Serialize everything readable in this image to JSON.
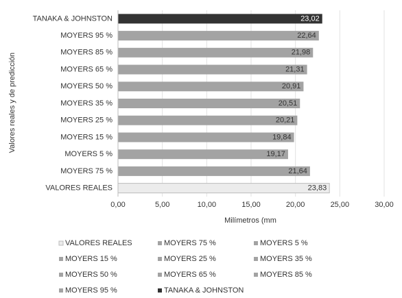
{
  "chart_data": {
    "type": "barh",
    "categories": [
      "VALORES REALES",
      "MOYERS 75 %",
      "MOYERS 5 %",
      "MOYERS 15 %",
      "MOYERS 25 %",
      "MOYERS 35 %",
      "MOYERS 50 %",
      "MOYERS 65 %",
      "MOYERS 85 %",
      "MOYERS 95 %",
      "TANAKA & JOHNSTON"
    ],
    "values": [
      23.83,
      21.64,
      19.17,
      19.84,
      20.21,
      20.51,
      20.91,
      21.31,
      21.98,
      22.64,
      23.02
    ],
    "value_labels": [
      "23,83",
      "21,64",
      "19,17",
      "19,84",
      "20,21",
      "20,51",
      "20,91",
      "21,31",
      "21,98",
      "22,64",
      "23,02"
    ],
    "colors": [
      "#ececec",
      "#a3a3a3",
      "#a3a3a3",
      "#a3a3a3",
      "#a3a3a3",
      "#a3a3a3",
      "#a3a3a3",
      "#a3a3a3",
      "#a3a3a3",
      "#a3a3a3",
      "#333333"
    ],
    "xlabel": "Milímetros (mm",
    "ylabel": "Valores reales y de predicción",
    "xlim": [
      0,
      30
    ],
    "xticks": [
      {
        "value": 0,
        "label": "0,00"
      },
      {
        "value": 5,
        "label": "5,00"
      },
      {
        "value": 10,
        "label": "10,00"
      },
      {
        "value": 15,
        "label": "15,00"
      },
      {
        "value": 20,
        "label": "20,00"
      },
      {
        "value": 25,
        "label": "25,00"
      },
      {
        "value": 30,
        "label": "30,00"
      }
    ],
    "grid": true,
    "legend": "bottom"
  }
}
